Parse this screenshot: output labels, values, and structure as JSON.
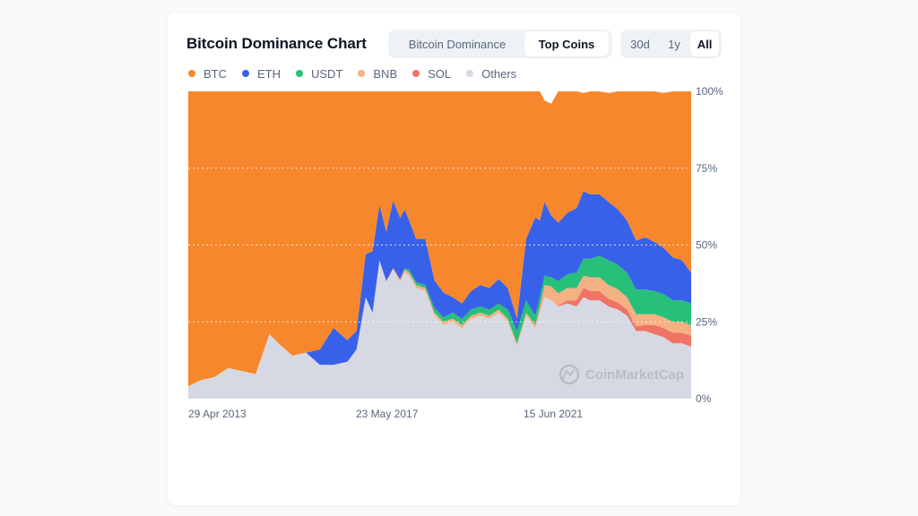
{
  "header": {
    "title": "Bitcoin Dominance Chart",
    "view_tabs": [
      "Bitcoin Dominance",
      "Top Coins"
    ],
    "active_view": "Top Coins",
    "range_tabs": [
      "30d",
      "1y",
      "All"
    ],
    "active_range": "All"
  },
  "legend": [
    {
      "name": "BTC",
      "color": "#f7872d"
    },
    {
      "name": "ETH",
      "color": "#3861e9"
    },
    {
      "name": "USDT",
      "color": "#26c07a"
    },
    {
      "name": "BNB",
      "color": "#f4b183"
    },
    {
      "name": "SOL",
      "color": "#ef7464"
    },
    {
      "name": "Others",
      "color": "#d6d9e3"
    }
  ],
  "watermark": "CoinMarketCap",
  "chart_data": {
    "type": "area",
    "stacked": true,
    "title": "Bitcoin Dominance Chart",
    "x_ticks": [
      "29 Apr 2013",
      "23 May 2017",
      "15 Jun 2021"
    ],
    "y_ticks": [
      "0%",
      "25%",
      "50%",
      "75%",
      "100%"
    ],
    "ylim": [
      0,
      100
    ],
    "x_range": [
      2013.33,
      2024.3
    ],
    "grid": "horizontal dotted",
    "x": [
      2013.33,
      2013.6,
      2013.9,
      2014.2,
      2014.5,
      2014.8,
      2015.1,
      2015.3,
      2015.6,
      2015.9,
      2016.2,
      2016.5,
      2016.8,
      2017.0,
      2017.2,
      2017.35,
      2017.5,
      2017.65,
      2017.8,
      2017.95,
      2018.05,
      2018.15,
      2018.3,
      2018.5,
      2018.7,
      2018.9,
      2019.1,
      2019.3,
      2019.5,
      2019.7,
      2019.9,
      2020.1,
      2020.3,
      2020.5,
      2020.7,
      2020.9,
      2021.0,
      2021.1,
      2021.25,
      2021.4,
      2021.6,
      2021.8,
      2021.95,
      2022.1,
      2022.3,
      2022.5,
      2022.7,
      2022.9,
      2023.1,
      2023.3,
      2023.5,
      2023.7,
      2023.9,
      2024.1,
      2024.3
    ],
    "series": [
      {
        "name": "Others",
        "values": [
          4,
          6,
          7,
          10,
          9,
          8,
          21,
          18,
          14,
          15,
          11,
          11,
          12,
          16,
          33,
          28,
          45,
          38,
          42,
          38,
          41,
          40,
          36,
          35,
          27,
          24,
          25,
          23,
          26,
          27,
          26,
          28,
          25,
          17,
          27,
          23,
          28,
          33,
          32,
          30,
          31,
          30,
          33,
          32,
          32,
          30,
          29,
          27,
          22,
          22,
          21,
          20,
          18,
          18,
          17
        ]
      },
      {
        "name": "SOL",
        "values": [
          0,
          0,
          0,
          0,
          0,
          0,
          0,
          0,
          0,
          0,
          0,
          0,
          0,
          0,
          0,
          0,
          0,
          0,
          0,
          0,
          0,
          0,
          0,
          0,
          0,
          0,
          0,
          0,
          0,
          0,
          0,
          0,
          0,
          0,
          0,
          0,
          0,
          0,
          0,
          0.3,
          1,
          2,
          3,
          3,
          3,
          2.5,
          2.3,
          2,
          1.5,
          2,
          3,
          3,
          3.5,
          3.5,
          3.5
        ]
      },
      {
        "name": "BNB",
        "values": [
          0,
          0,
          0,
          0,
          0,
          0,
          0,
          0,
          0,
          0,
          0,
          0,
          0,
          0,
          0,
          0,
          0,
          0.3,
          0.5,
          0.8,
          1,
          1,
          1,
          1,
          1,
          1,
          1,
          1,
          1,
          1,
          1,
          1,
          1,
          1,
          1,
          1,
          2,
          4,
          4.5,
          4,
          4,
          4,
          4,
          4.5,
          4.5,
          4.5,
          4.3,
          4,
          4,
          3.5,
          3.5,
          3.5,
          3.5,
          3.5,
          3.5
        ]
      },
      {
        "name": "USDT",
        "values": [
          0,
          0,
          0,
          0,
          0,
          0,
          0,
          0,
          0,
          0,
          0,
          0,
          0,
          0,
          0,
          0,
          0,
          0,
          0,
          0,
          0.5,
          1,
          1,
          1,
          1.5,
          1.5,
          2,
          2,
          2,
          2,
          2,
          2,
          3,
          4,
          4,
          3,
          3,
          3,
          3,
          4,
          4.5,
          5,
          5.5,
          6,
          7,
          8,
          8,
          8,
          8,
          8,
          7.5,
          7.5,
          7,
          7,
          7
        ]
      },
      {
        "name": "ETH",
        "values": [
          0,
          0,
          0,
          0,
          0,
          0,
          0,
          0,
          0,
          0,
          5,
          12,
          7,
          6,
          14,
          20,
          18,
          16,
          22,
          20,
          19,
          16,
          14,
          15,
          9,
          8,
          5,
          5,
          6,
          7,
          7,
          8,
          7,
          4,
          20,
          32,
          25,
          24,
          20,
          19,
          20,
          21,
          22,
          21,
          20,
          19,
          18,
          17,
          16,
          17,
          16,
          15,
          14,
          13,
          10
        ]
      },
      {
        "name": "BTC",
        "values": [
          96,
          94,
          93,
          90,
          91,
          92,
          79,
          82,
          86,
          85,
          84,
          77,
          81,
          78,
          53,
          52,
          37,
          45.7,
          35.5,
          41.2,
          38.5,
          42,
          48,
          48,
          61.5,
          65.5,
          67,
          69,
          65,
          63,
          64,
          61,
          64,
          74,
          48,
          41,
          42,
          33,
          36.5,
          42.7,
          39.5,
          38,
          32,
          33.5,
          33.5,
          35.5,
          38.4,
          42,
          48.5,
          47.5,
          49,
          50.5,
          54,
          55,
          59
        ]
      }
    ]
  }
}
